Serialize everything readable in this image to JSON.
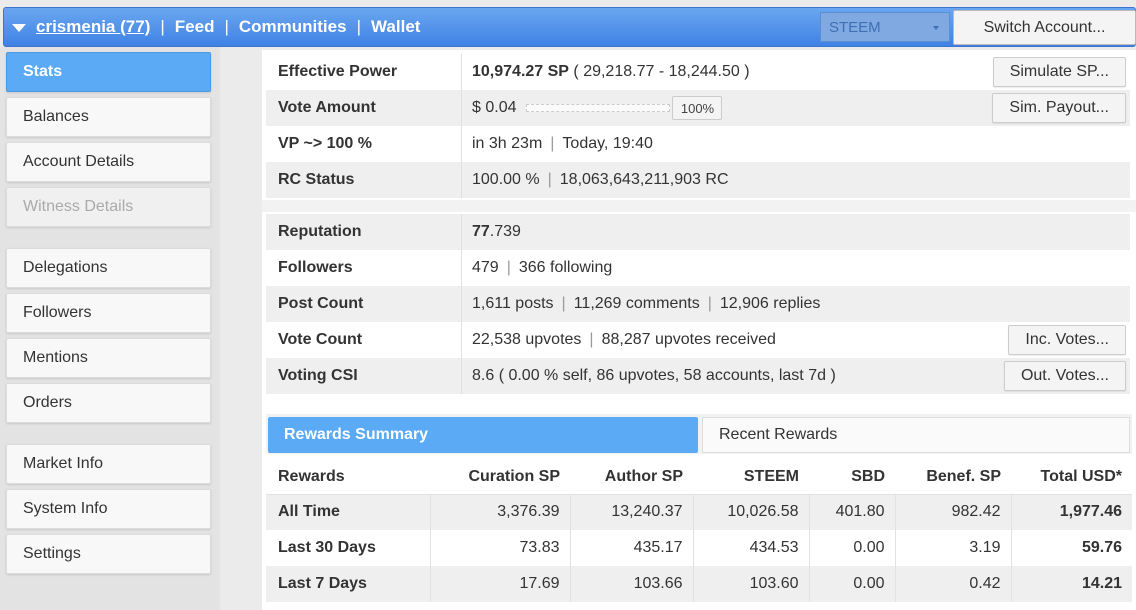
{
  "topbar": {
    "username": "crismenia",
    "reputation_count": "(77)",
    "sep": "|",
    "links": [
      "Feed",
      "Communities",
      "Wallet"
    ],
    "coin": "STEEM",
    "switch_label": "Switch Account..."
  },
  "sidebar": {
    "items": [
      {
        "label": "Stats",
        "state": "active"
      },
      {
        "label": "Balances",
        "state": "normal"
      },
      {
        "label": "Account Details",
        "state": "normal"
      },
      {
        "label": "Witness Details",
        "state": "disabled"
      },
      {
        "label": "Delegations",
        "state": "normal"
      },
      {
        "label": "Followers",
        "state": "normal"
      },
      {
        "label": "Mentions",
        "state": "normal"
      },
      {
        "label": "Orders",
        "state": "normal"
      },
      {
        "label": "Market Info",
        "state": "normal"
      },
      {
        "label": "System Info",
        "state": "normal"
      },
      {
        "label": "Settings",
        "state": "normal"
      }
    ]
  },
  "stats": {
    "effective_power": {
      "label": "Effective Power",
      "value_bold": "10,974.27 SP",
      "value_rest": " ( 29,218.77 - 18,244.50 )",
      "button": "Simulate SP..."
    },
    "vote_amount": {
      "label": "Vote Amount",
      "value": "$ 0.04",
      "slider_label": "100%",
      "slider_fraction": 1.0,
      "button": "Sim. Payout..."
    },
    "vp": {
      "label": "VP ~> 100 %",
      "part1": "in 3h 23m",
      "part2": "Today, 19:40"
    },
    "rc": {
      "label": "RC Status",
      "part1": "100.00 %",
      "part2": "18,063,643,211,903 RC"
    },
    "reputation": {
      "label": "Reputation",
      "value_bold": "77",
      "value_rest": ".739"
    },
    "followers": {
      "label": "Followers",
      "part1": "479",
      "part2": "366 following"
    },
    "post_count": {
      "label": "Post Count",
      "part1": "1,611 posts",
      "part2": "11,269 comments",
      "part3": "12,906 replies"
    },
    "vote_count": {
      "label": "Vote Count",
      "part1": "22,538 upvotes",
      "part2": "88,287 upvotes received",
      "button": "Inc. Votes..."
    },
    "voting_csi": {
      "label": "Voting CSI",
      "value": "8.6 ( 0.00 % self, 86 upvotes, 58 accounts, last 7d )",
      "button": "Out. Votes..."
    },
    "sep": "|"
  },
  "rewards": {
    "tabs": [
      "Rewards Summary",
      "Recent Rewards"
    ],
    "headers": [
      "Rewards",
      "Curation SP",
      "Author SP",
      "STEEM",
      "SBD",
      "Benef. SP",
      "Total USD*"
    ],
    "rows": [
      [
        "All Time",
        "3,376.39",
        "13,240.37",
        "10,026.58",
        "401.80",
        "982.42",
        "1,977.46"
      ],
      [
        "Last 30 Days",
        "73.83",
        "435.17",
        "434.53",
        "0.00",
        "3.19",
        "59.76"
      ],
      [
        "Last 7 Days",
        "17.69",
        "103.66",
        "103.60",
        "0.00",
        "0.42",
        "14.21"
      ]
    ]
  },
  "colors": {
    "accent": "#5aaaf5",
    "topbar": "#4a8de8"
  }
}
